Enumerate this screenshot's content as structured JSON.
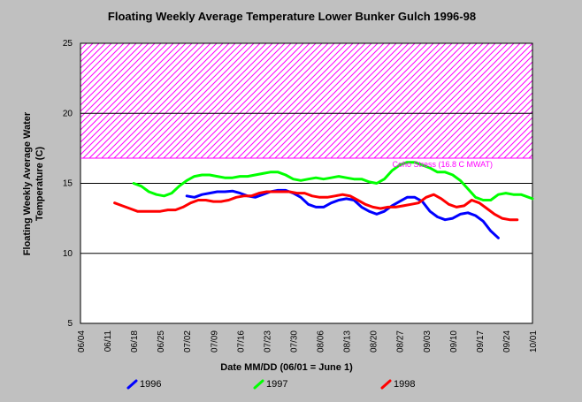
{
  "chart_data": {
    "type": "line",
    "title": "Floating Weekly Average Temperature Lower Bunker Gulch 1996-98",
    "xlabel": "Date MM/DD (06/01 = June 1)",
    "ylabel_lines": [
      "Floating Weekly Average Water",
      "Temperature (C)"
    ],
    "x_ticks": [
      "06/04",
      "06/11",
      "06/18",
      "06/25",
      "07/02",
      "07/09",
      "07/16",
      "07/23",
      "07/30",
      "08/06",
      "08/13",
      "08/20",
      "08/27",
      "09/03",
      "09/10",
      "09/17",
      "09/24",
      "10/01"
    ],
    "y_ticks": [
      5,
      10,
      15,
      20,
      25
    ],
    "ylim": [
      5,
      25
    ],
    "threshold": {
      "label": "Coho Stress (16.8 C MWAT)",
      "value": 16.8,
      "color": "#ff00ff"
    },
    "grid_y": [
      10,
      15,
      20
    ],
    "series": [
      {
        "name": "1996",
        "color": "#0000ff",
        "points": [
          [
            "07/02",
            14.1
          ],
          [
            "07/04",
            14.0
          ],
          [
            "07/06",
            14.2
          ],
          [
            "07/08",
            14.3
          ],
          [
            "07/10",
            14.4
          ],
          [
            "07/12",
            14.4
          ],
          [
            "07/14",
            14.45
          ],
          [
            "07/16",
            14.3
          ],
          [
            "07/18",
            14.1
          ],
          [
            "07/20",
            14.0
          ],
          [
            "07/22",
            14.2
          ],
          [
            "07/24",
            14.4
          ],
          [
            "07/26",
            14.5
          ],
          [
            "07/28",
            14.5
          ],
          [
            "07/30",
            14.3
          ],
          [
            "08/01",
            14.0
          ],
          [
            "08/03",
            13.5
          ],
          [
            "08/05",
            13.3
          ],
          [
            "08/07",
            13.3
          ],
          [
            "08/09",
            13.6
          ],
          [
            "08/11",
            13.8
          ],
          [
            "08/13",
            13.9
          ],
          [
            "08/15",
            13.8
          ],
          [
            "08/17",
            13.3
          ],
          [
            "08/19",
            13.0
          ],
          [
            "08/21",
            12.8
          ],
          [
            "08/23",
            13.0
          ],
          [
            "08/25",
            13.4
          ],
          [
            "08/27",
            13.7
          ],
          [
            "08/29",
            14.0
          ],
          [
            "08/31",
            14.0
          ],
          [
            "09/02",
            13.7
          ],
          [
            "09/04",
            13.0
          ],
          [
            "09/06",
            12.6
          ],
          [
            "09/08",
            12.4
          ],
          [
            "09/10",
            12.5
          ],
          [
            "09/12",
            12.8
          ],
          [
            "09/14",
            12.9
          ],
          [
            "09/16",
            12.7
          ],
          [
            "09/18",
            12.3
          ],
          [
            "09/20",
            11.6
          ],
          [
            "09/22",
            11.1
          ]
        ]
      },
      {
        "name": "1997",
        "color": "#00ff00",
        "points": [
          [
            "06/18",
            15.0
          ],
          [
            "06/20",
            14.8
          ],
          [
            "06/22",
            14.4
          ],
          [
            "06/24",
            14.2
          ],
          [
            "06/26",
            14.1
          ],
          [
            "06/28",
            14.3
          ],
          [
            "06/30",
            14.8
          ],
          [
            "07/02",
            15.2
          ],
          [
            "07/04",
            15.5
          ],
          [
            "07/06",
            15.6
          ],
          [
            "07/08",
            15.6
          ],
          [
            "07/10",
            15.5
          ],
          [
            "07/12",
            15.4
          ],
          [
            "07/14",
            15.4
          ],
          [
            "07/16",
            15.5
          ],
          [
            "07/18",
            15.5
          ],
          [
            "07/20",
            15.6
          ],
          [
            "07/22",
            15.7
          ],
          [
            "07/24",
            15.8
          ],
          [
            "07/26",
            15.8
          ],
          [
            "07/28",
            15.6
          ],
          [
            "07/30",
            15.3
          ],
          [
            "08/01",
            15.2
          ],
          [
            "08/03",
            15.3
          ],
          [
            "08/05",
            15.4
          ],
          [
            "08/07",
            15.3
          ],
          [
            "08/09",
            15.4
          ],
          [
            "08/11",
            15.5
          ],
          [
            "08/13",
            15.4
          ],
          [
            "08/15",
            15.3
          ],
          [
            "08/17",
            15.3
          ],
          [
            "08/19",
            15.1
          ],
          [
            "08/21",
            15.0
          ],
          [
            "08/23",
            15.3
          ],
          [
            "08/25",
            15.9
          ],
          [
            "08/27",
            16.3
          ],
          [
            "08/29",
            16.5
          ],
          [
            "08/31",
            16.5
          ],
          [
            "09/02",
            16.3
          ],
          [
            "09/04",
            16.1
          ],
          [
            "09/06",
            15.8
          ],
          [
            "09/08",
            15.8
          ],
          [
            "09/10",
            15.6
          ],
          [
            "09/12",
            15.2
          ],
          [
            "09/14",
            14.6
          ],
          [
            "09/16",
            14.0
          ],
          [
            "09/18",
            13.8
          ],
          [
            "09/20",
            13.8
          ],
          [
            "09/22",
            14.2
          ],
          [
            "09/24",
            14.3
          ],
          [
            "09/26",
            14.2
          ],
          [
            "09/28",
            14.2
          ],
          [
            "09/30",
            14.0
          ],
          [
            "10/01",
            13.9
          ]
        ]
      },
      {
        "name": "1998",
        "color": "#ff0000",
        "points": [
          [
            "06/13",
            13.6
          ],
          [
            "06/15",
            13.4
          ],
          [
            "06/17",
            13.2
          ],
          [
            "06/19",
            13.0
          ],
          [
            "06/21",
            13.0
          ],
          [
            "06/23",
            13.0
          ],
          [
            "06/25",
            13.0
          ],
          [
            "06/27",
            13.1
          ],
          [
            "06/29",
            13.1
          ],
          [
            "07/01",
            13.3
          ],
          [
            "07/03",
            13.6
          ],
          [
            "07/05",
            13.8
          ],
          [
            "07/07",
            13.8
          ],
          [
            "07/09",
            13.7
          ],
          [
            "07/11",
            13.7
          ],
          [
            "07/13",
            13.8
          ],
          [
            "07/15",
            14.0
          ],
          [
            "07/17",
            14.1
          ],
          [
            "07/19",
            14.1
          ],
          [
            "07/21",
            14.3
          ],
          [
            "07/23",
            14.4
          ],
          [
            "07/25",
            14.4
          ],
          [
            "07/27",
            14.4
          ],
          [
            "07/29",
            14.4
          ],
          [
            "07/31",
            14.3
          ],
          [
            "08/02",
            14.3
          ],
          [
            "08/04",
            14.1
          ],
          [
            "08/06",
            14.0
          ],
          [
            "08/08",
            14.0
          ],
          [
            "08/10",
            14.1
          ],
          [
            "08/12",
            14.2
          ],
          [
            "08/14",
            14.1
          ],
          [
            "08/16",
            13.8
          ],
          [
            "08/18",
            13.5
          ],
          [
            "08/20",
            13.3
          ],
          [
            "08/22",
            13.2
          ],
          [
            "08/24",
            13.3
          ],
          [
            "08/26",
            13.3
          ],
          [
            "08/28",
            13.4
          ],
          [
            "08/30",
            13.5
          ],
          [
            "09/01",
            13.6
          ],
          [
            "09/03",
            14.0
          ],
          [
            "09/05",
            14.2
          ],
          [
            "09/07",
            13.9
          ],
          [
            "09/09",
            13.5
          ],
          [
            "09/11",
            13.3
          ],
          [
            "09/13",
            13.4
          ],
          [
            "09/15",
            13.8
          ],
          [
            "09/17",
            13.6
          ],
          [
            "09/19",
            13.2
          ],
          [
            "09/21",
            12.8
          ],
          [
            "09/23",
            12.5
          ],
          [
            "09/25",
            12.4
          ],
          [
            "09/27",
            12.4
          ]
        ]
      }
    ]
  }
}
